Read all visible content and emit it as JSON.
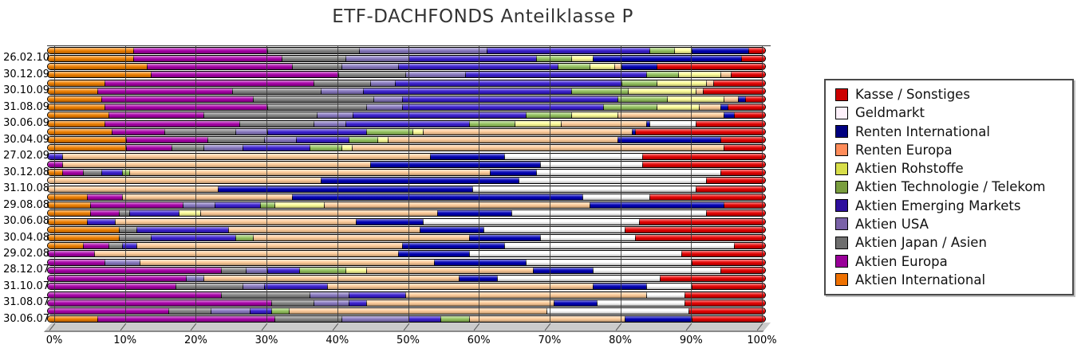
{
  "title": "ETF-DACHFONDS Anteilklasse P",
  "chart_data": {
    "type": "bar",
    "stacked": true,
    "orientation": "horizontal",
    "unit": "%",
    "x_axis": {
      "min": 0,
      "max": 100,
      "tick_labels": [
        "0%",
        "10%",
        "20%",
        "30%",
        "40%",
        "50%",
        "60%",
        "70%",
        "80%",
        "90%",
        "100%"
      ]
    },
    "grid": "vertical-on",
    "legend_position": "right",
    "stack_order": [
      "aktien_international",
      "aktien_europa",
      "aktien_japan_asien",
      "aktien_usa",
      "aktien_emerging_markets",
      "aktien_technologie_telekom",
      "aktien_rohstoffe",
      "renten_europa",
      "renten_international",
      "geldmarkt",
      "kasse_sonstiges"
    ],
    "categories": {
      "kasse_sonstiges": {
        "label": "Kasse / Sonstiges",
        "bar_color": "#e60000",
        "legend_color": "#cc0000"
      },
      "geldmarkt": {
        "label": "Geldmarkt",
        "bar_color": "#ffffff",
        "legend_color": "#fdf0fa"
      },
      "renten_international": {
        "label": "Renten International",
        "bar_color": "#0000b5",
        "legend_color": "#000080"
      },
      "renten_europa": {
        "label": "Renten Europa",
        "bar_color": "#ffcc99",
        "legend_color": "#ff8c5a"
      },
      "aktien_rohstoffe": {
        "label": "Aktien Rohstoffe",
        "bar_color": "#ffff99",
        "legend_color": "#d8de4a"
      },
      "aktien_technologie_telekom": {
        "label": "Aktien Technologie / Telekom",
        "bar_color": "#95c45f",
        "legend_color": "#7a9e3f"
      },
      "aktien_emerging_markets": {
        "label": "Aktien Emerging Markets",
        "bar_color": "#3a1fd0",
        "legend_color": "#2e0f9e"
      },
      "aktien_usa": {
        "label": "Aktien USA",
        "bar_color": "#8878c0",
        "legend_color": "#7a62a8"
      },
      "aktien_japan_asien": {
        "label": "Aktien Japan / Asien",
        "bar_color": "#858585",
        "legend_color": "#6e6e6e"
      },
      "aktien_europa": {
        "label": "Aktien Europa",
        "bar_color": "#a800a8",
        "legend_color": "#990099"
      },
      "aktien_international": {
        "label": "Aktien International",
        "bar_color": "#f08000",
        "legend_color": "#ef7100"
      }
    },
    "legend_order": [
      "kasse_sonstiges",
      "geldmarkt",
      "renten_international",
      "renten_europa",
      "aktien_rohstoffe",
      "aktien_technologie_telekom",
      "aktien_emerging_markets",
      "aktien_usa",
      "aktien_japan_asien",
      "aktien_europa",
      "aktien_international"
    ],
    "rows": [
      {
        "label": "",
        "segments": [
          11,
          19,
          13,
          18,
          23,
          3.5,
          2.5,
          0,
          8,
          0,
          2
        ]
      },
      {
        "label": "26.02.10",
        "segments": [
          11,
          21,
          9,
          9,
          18,
          5,
          3,
          0,
          21,
          0,
          3
        ]
      },
      {
        "label": "",
        "segments": [
          13,
          20.5,
          7,
          8,
          22.5,
          4.5,
          3.5,
          1,
          5,
          0,
          15
        ]
      },
      {
        "label": "30.12.09",
        "segments": [
          13.5,
          26.5,
          9.5,
          8.5,
          25.5,
          4.5,
          6,
          1.5,
          0,
          0,
          4.5
        ]
      },
      {
        "label": "",
        "segments": [
          7,
          29.5,
          8,
          3.5,
          32,
          5,
          7,
          1,
          0,
          0,
          7
        ]
      },
      {
        "label": "30.10.09",
        "segments": [
          6,
          19,
          12.5,
          6,
          29.5,
          8,
          9.5,
          1,
          0,
          0,
          8.5
        ]
      },
      {
        "label": "",
        "segments": [
          6.5,
          21.5,
          17,
          4,
          30.5,
          7,
          8,
          2,
          1,
          0,
          2.5
        ]
      },
      {
        "label": "31.08.09",
        "segments": [
          7,
          23,
          14,
          5,
          28.5,
          7.5,
          6,
          3,
          1,
          0,
          5
        ]
      },
      {
        "label": "",
        "segments": [
          7.5,
          13.5,
          16,
          5,
          24.5,
          6.5,
          6.5,
          15,
          1.5,
          0,
          4
        ]
      },
      {
        "label": "30.06.09",
        "segments": [
          7,
          19,
          10.5,
          4.5,
          17.5,
          6.5,
          6.5,
          12,
          0.5,
          6.5,
          9.5
        ]
      },
      {
        "label": "",
        "segments": [
          8,
          7.5,
          10,
          4.5,
          14,
          6.5,
          1.5,
          29.5,
          0.5,
          0,
          18
        ]
      },
      {
        "label": "30.04.09",
        "segments": [
          10,
          11.5,
          8,
          4.5,
          7.5,
          4,
          1.5,
          32.5,
          14.5,
          0,
          6
        ]
      },
      {
        "label": "",
        "segments": [
          10,
          6.5,
          4.5,
          5.5,
          9.5,
          4.5,
          1.5,
          52.5,
          0,
          0,
          5.5
        ]
      },
      {
        "label": "27.02.09",
        "segments": [
          0,
          0,
          0,
          0,
          1,
          0,
          0,
          52,
          10.5,
          19.5,
          17
        ]
      },
      {
        "label": "",
        "segments": [
          0,
          1,
          0,
          0,
          0,
          0,
          0,
          43.5,
          24,
          14.5,
          17
        ]
      },
      {
        "label": "30.12.08",
        "segments": [
          1,
          3,
          2.5,
          0,
          3,
          1,
          0,
          51,
          6.5,
          26,
          6
        ]
      },
      {
        "label": "",
        "segments": [
          0,
          0,
          0,
          0,
          0,
          0,
          0,
          37.5,
          28,
          26.5,
          8
        ]
      },
      {
        "label": "31.10.08",
        "segments": [
          0,
          0,
          0,
          0,
          0,
          0,
          0,
          23,
          36,
          31.5,
          9.5
        ]
      },
      {
        "label": "",
        "segments": [
          4.5,
          5,
          0,
          0,
          0,
          0,
          0,
          24,
          41,
          9.5,
          16
        ]
      },
      {
        "label": "29.08.08",
        "segments": [
          5,
          13,
          0,
          4.5,
          6.5,
          2,
          7,
          37.5,
          19,
          0,
          5.5
        ]
      },
      {
        "label": "",
        "segments": [
          5,
          4,
          1.5,
          0,
          7,
          0,
          3,
          33.5,
          10.5,
          27.5,
          8
        ]
      },
      {
        "label": "30.06.08",
        "segments": [
          4.5,
          0,
          0,
          0,
          4,
          0,
          0,
          34,
          9.5,
          30.5,
          17.5
        ]
      },
      {
        "label": "",
        "segments": [
          9,
          0,
          2.5,
          0,
          13,
          0,
          0,
          27,
          9,
          20,
          19.5
        ]
      },
      {
        "label": "30.04.08",
        "segments": [
          9,
          0,
          4.5,
          0,
          12,
          2.5,
          0,
          30.5,
          10,
          13.5,
          18
        ]
      },
      {
        "label": "",
        "segments": [
          4,
          3.5,
          2,
          0,
          2,
          0,
          0,
          37.5,
          14.5,
          32.5,
          4
        ]
      },
      {
        "label": "29.02.08",
        "segments": [
          0,
          5.5,
          0,
          0,
          0,
          0,
          0,
          43,
          10,
          30,
          11.5
        ]
      },
      {
        "label": "",
        "segments": [
          0,
          7,
          0,
          5,
          0,
          0,
          0,
          41.5,
          13,
          23.5,
          10
        ]
      },
      {
        "label": "28.12.07",
        "segments": [
          0,
          23.5,
          3.5,
          3,
          4.5,
          6.5,
          3,
          23.5,
          8.5,
          18,
          6
        ]
      },
      {
        "label": "",
        "segments": [
          0,
          18.5,
          0,
          2.5,
          0,
          0,
          0,
          36,
          5.5,
          23,
          14.5
        ]
      },
      {
        "label": "31.10.07",
        "segments": [
          0,
          17,
          9.5,
          3,
          9,
          0,
          0,
          37.5,
          7.5,
          6.5,
          10
        ]
      },
      {
        "label": "",
        "segments": [
          0,
          23.5,
          12.5,
          5.5,
          8,
          0,
          0,
          34,
          0,
          5.5,
          11
        ]
      },
      {
        "label": "31.08.07",
        "segments": [
          0,
          30.5,
          6,
          5,
          2.5,
          0,
          0,
          26.5,
          6,
          12.5,
          11
        ]
      },
      {
        "label": "",
        "segments": [
          0,
          16,
          6,
          5.5,
          3,
          2.5,
          0,
          36.5,
          0,
          20,
          10.5
        ]
      },
      {
        "label": "30.06.07",
        "segments": [
          6,
          25,
          9.5,
          9.5,
          4.5,
          4,
          0,
          22,
          9.5,
          0,
          10
        ]
      }
    ]
  }
}
